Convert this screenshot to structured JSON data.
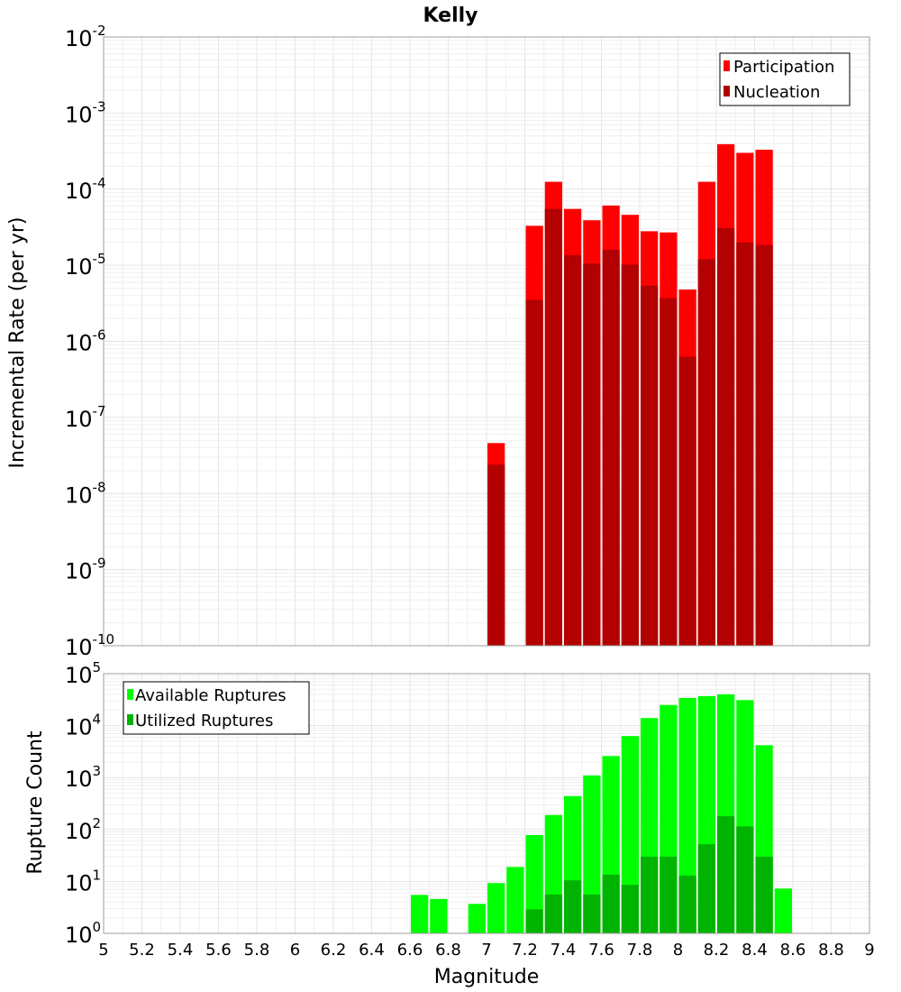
{
  "title": "Kelly",
  "chart_data": [
    {
      "type": "bar",
      "name": "rate",
      "ylabel": "Incremental Rate (per yr)",
      "xlabel": "",
      "yscale": "log",
      "ylim_exp": [
        -10,
        -2
      ],
      "xlim": [
        5,
        9
      ],
      "grid": true,
      "legend_position": "top-right",
      "bin_width": 0.1,
      "x": [
        7.05,
        7.25,
        7.35,
        7.45,
        7.55,
        7.65,
        7.75,
        7.85,
        7.95,
        8.05,
        8.15,
        8.25,
        8.35,
        8.45
      ],
      "series": [
        {
          "name": "Participation",
          "color": "#ff0000",
          "values": [
            4.6e-08,
            3.3e-05,
            0.000125,
            5.5e-05,
            3.9e-05,
            6.1e-05,
            4.6e-05,
            2.8e-05,
            2.7e-05,
            4.8e-06,
            0.000125,
            0.00039,
            0.0003,
            0.00033
          ]
        },
        {
          "name": "Nucleation",
          "color": "#b30000",
          "values": [
            2.4e-08,
            3.5e-06,
            5.5e-05,
            1.35e-05,
            1.05e-05,
            1.6e-05,
            1.02e-05,
            5.4e-06,
            3.7e-06,
            6.3e-07,
            1.2e-05,
            3.1e-05,
            2e-05,
            1.85e-05
          ]
        }
      ]
    },
    {
      "type": "bar",
      "name": "count",
      "ylabel": "Rupture Count",
      "xlabel": "Magnitude",
      "yscale": "log",
      "ylim_exp": [
        0,
        5
      ],
      "xlim": [
        5,
        9
      ],
      "grid": true,
      "legend_position": "top-left",
      "bin_width": 0.1,
      "x": [
        6.65,
        6.75,
        6.95,
        7.05,
        7.15,
        7.25,
        7.35,
        7.45,
        7.55,
        7.65,
        7.75,
        7.85,
        7.95,
        8.05,
        8.15,
        8.25,
        8.35,
        8.45,
        8.55
      ],
      "series": [
        {
          "name": "Available Ruptures",
          "color": "#00ff00",
          "values": [
            5.5,
            4.6,
            3.7,
            9.3,
            19,
            78,
            190,
            440,
            1100,
            2600,
            6300,
            14000,
            25000,
            34000,
            37000,
            40000,
            31000,
            4200,
            7.3
          ]
        },
        {
          "name": "Utilized Ruptures",
          "color": "#00b300",
          "values": [
            null,
            null,
            null,
            1,
            1,
            2.9,
            5.6,
            10.5,
            5.6,
            13.5,
            8.6,
            30,
            30,
            13,
            52,
            180,
            115,
            30,
            null
          ]
        }
      ]
    }
  ],
  "x_ticks": [
    "5",
    "5.2",
    "5.4",
    "5.6",
    "5.8",
    "6",
    "6.2",
    "6.4",
    "6.6",
    "6.8",
    "7",
    "7.2",
    "7.4",
    "7.6",
    "7.8",
    "8",
    "8.2",
    "8.4",
    "8.6",
    "8.8",
    "9"
  ],
  "tick_base": "10",
  "top_ticks_exp": [
    "-2",
    "-3",
    "-4",
    "-5",
    "-6",
    "-7",
    "-8",
    "-9",
    "-10"
  ],
  "bottom_ticks_exp": [
    "5",
    "4",
    "3",
    "2",
    "1",
    "0"
  ],
  "legend_top": [
    "Participation",
    "Nucleation"
  ],
  "legend_bottom": [
    "Available Ruptures",
    "Utilized Ruptures"
  ],
  "colors": {
    "participation": "#ff0000",
    "nucleation": "#b30000",
    "available": "#00ff00",
    "utilized": "#00b300",
    "grid": "#e4e4e4"
  }
}
